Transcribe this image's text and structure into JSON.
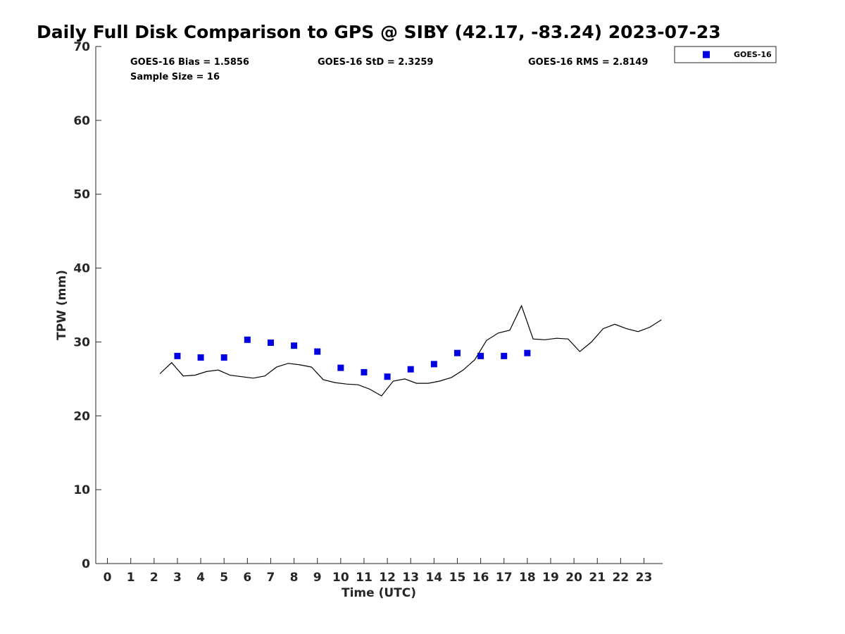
{
  "chart_data": {
    "type": "scatter",
    "title": "Daily Full Disk Comparison to GPS @ SIBY (42.17, -83.24) 2023-07-23",
    "xlabel": "Time (UTC)",
    "ylabel": "TPW (mm)",
    "xlim": [
      -0.5,
      23.8
    ],
    "ylim": [
      0,
      70
    ],
    "x_ticks": [
      "0",
      "1",
      "2",
      "3",
      "4",
      "5",
      "6",
      "7",
      "8",
      "9",
      "10",
      "11",
      "12",
      "13",
      "14",
      "15",
      "16",
      "17",
      "18",
      "19",
      "20",
      "21",
      "22",
      "23"
    ],
    "y_ticks": [
      "0",
      "10",
      "20",
      "30",
      "40",
      "50",
      "60",
      "70"
    ],
    "grid": false,
    "legend": {
      "placement": "outside-top-right",
      "entries": [
        "GOES-16"
      ]
    },
    "stats": {
      "bias": "GOES-16 Bias = 1.5856",
      "std": "GOES-16 StD = 2.3259",
      "rms": "GOES-16 RMS = 2.8149",
      "sample": "Sample Size = 16"
    },
    "series": [
      {
        "name": "GOES-16",
        "kind": "markers",
        "color": "#0000e0",
        "x": [
          3,
          4,
          5,
          6,
          7,
          8,
          9,
          10,
          11,
          12,
          13,
          14,
          15,
          16,
          17,
          18
        ],
        "y": [
          28.1,
          27.9,
          27.9,
          30.3,
          29.9,
          29.5,
          28.7,
          26.5,
          25.9,
          25.3,
          26.3,
          27.0,
          28.5,
          28.1,
          28.1,
          28.5
        ]
      },
      {
        "kind": "line",
        "color": "#000000",
        "x": [
          2.25,
          2.75,
          3.25,
          3.75,
          4.25,
          4.75,
          5.25,
          5.75,
          6.25,
          6.75,
          7.25,
          7.75,
          8.25,
          8.75,
          9.25,
          9.75,
          10.25,
          10.75,
          11.25,
          11.75,
          12.25,
          12.75,
          13.25,
          13.75,
          14.25,
          14.75,
          15.25,
          15.75,
          16.25,
          16.75,
          17.25,
          17.75,
          18.25,
          18.75,
          19.25,
          19.75,
          20.25,
          20.75,
          21.25,
          21.75,
          22.25,
          22.75,
          23.25,
          23.75
        ],
        "y": [
          25.7,
          27.2,
          25.4,
          25.5,
          26.0,
          26.2,
          25.5,
          25.3,
          25.1,
          25.4,
          26.6,
          27.1,
          26.9,
          26.6,
          24.9,
          24.5,
          24.3,
          24.2,
          23.6,
          22.7,
          24.7,
          25.0,
          24.4,
          24.4,
          24.7,
          25.2,
          26.2,
          27.6,
          30.2,
          31.2,
          31.6,
          34.9,
          30.4,
          30.3,
          30.5,
          30.4,
          28.7,
          30.0,
          31.8,
          32.4,
          31.8,
          31.4,
          32.0,
          33.0
        ]
      }
    ]
  }
}
